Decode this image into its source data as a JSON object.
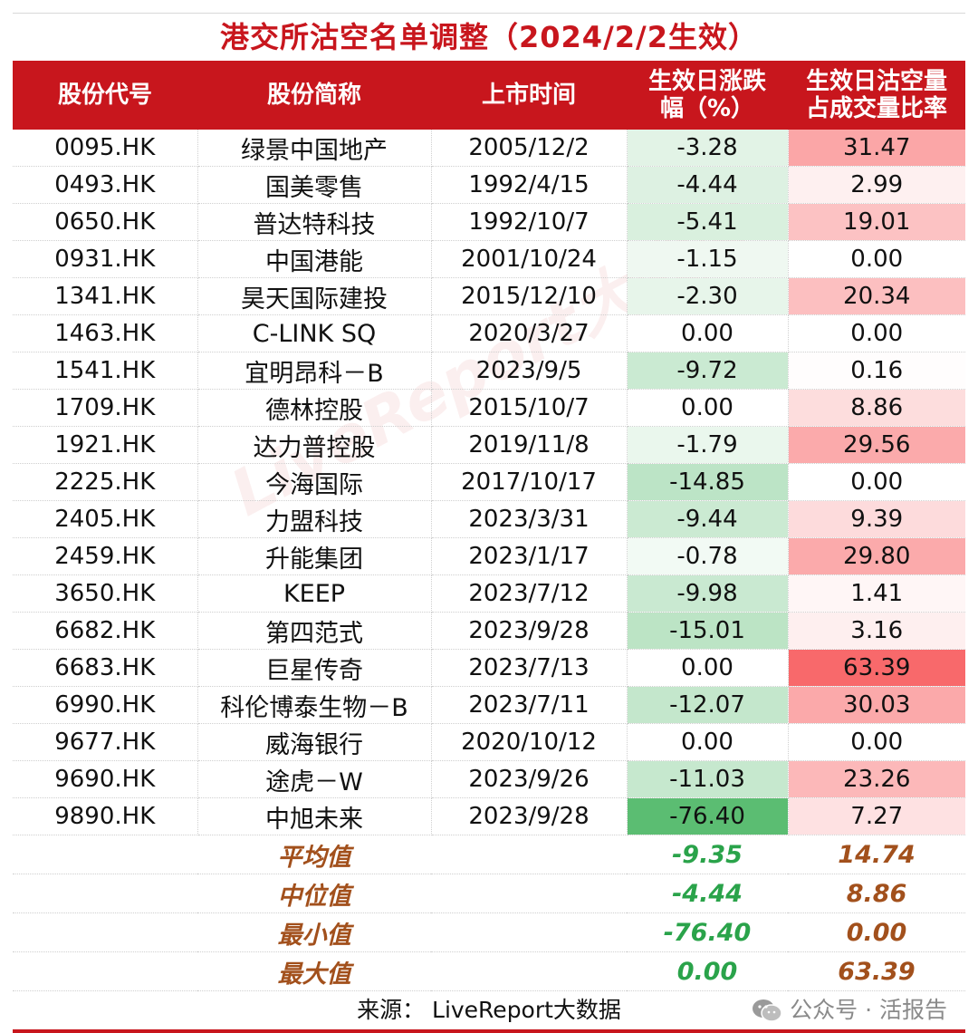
{
  "title": "港交所沽空名单调整（2024/2/2生效）",
  "headers": [
    "股份代号",
    "股份简称",
    "上市时间",
    "生效日涨跌\n幅（%）",
    "生效日沽空量\n占成交量比率"
  ],
  "rows": [
    {
      "code": "0095.HK",
      "name": "绿景中国地产",
      "date": "2005/12/2",
      "change": "-3.28",
      "short": "31.47"
    },
    {
      "code": "0493.HK",
      "name": "国美零售",
      "date": "1992/4/15",
      "change": "-4.44",
      "short": "2.99"
    },
    {
      "code": "0650.HK",
      "name": "普达特科技",
      "date": "1992/10/7",
      "change": "-5.41",
      "short": "19.01"
    },
    {
      "code": "0931.HK",
      "name": "中国港能",
      "date": "2001/10/24",
      "change": "-1.15",
      "short": "0.00"
    },
    {
      "code": "1341.HK",
      "name": "昊天国际建投",
      "date": "2015/12/10",
      "change": "-2.30",
      "short": "20.34"
    },
    {
      "code": "1463.HK",
      "name": "C-LINK SQ",
      "date": "2020/3/27",
      "change": "0.00",
      "short": "0.00"
    },
    {
      "code": "1541.HK",
      "name": "宜明昂科－B",
      "date": "2023/9/5",
      "change": "-9.72",
      "short": "0.16"
    },
    {
      "code": "1709.HK",
      "name": "德林控股",
      "date": "2015/10/7",
      "change": "0.00",
      "short": "8.86"
    },
    {
      "code": "1921.HK",
      "name": "达力普控股",
      "date": "2019/11/8",
      "change": "-1.79",
      "short": "29.56"
    },
    {
      "code": "2225.HK",
      "name": "今海国际",
      "date": "2017/10/17",
      "change": "-14.85",
      "short": "0.00"
    },
    {
      "code": "2405.HK",
      "name": "力盟科技",
      "date": "2023/3/31",
      "change": "-9.44",
      "short": "9.39"
    },
    {
      "code": "2459.HK",
      "name": "升能集团",
      "date": "2023/1/17",
      "change": "-0.78",
      "short": "29.80"
    },
    {
      "code": "3650.HK",
      "name": "KEEP",
      "date": "2023/7/12",
      "change": "-9.98",
      "short": "1.41"
    },
    {
      "code": "6682.HK",
      "name": "第四范式",
      "date": "2023/9/28",
      "change": "-15.01",
      "short": "3.16"
    },
    {
      "code": "6683.HK",
      "name": "巨星传奇",
      "date": "2023/7/13",
      "change": "0.00",
      "short": "63.39"
    },
    {
      "code": "6990.HK",
      "name": "科伦博泰生物－B",
      "date": "2023/7/11",
      "change": "-12.07",
      "short": "30.03"
    },
    {
      "code": "9677.HK",
      "name": "威海银行",
      "date": "2020/10/12",
      "change": "0.00",
      "short": "0.00"
    },
    {
      "code": "9690.HK",
      "name": "途虎－W",
      "date": "2023/9/26",
      "change": "-11.03",
      "short": "23.26"
    },
    {
      "code": "9890.HK",
      "name": "中旭未来",
      "date": "2023/9/28",
      "change": "-76.40",
      "short": "7.27"
    }
  ],
  "stats": [
    {
      "label": "平均值",
      "change": "-9.35",
      "short": "14.74"
    },
    {
      "label": "中位值",
      "change": "-4.44",
      "short": "8.86"
    },
    {
      "label": "最小值",
      "change": "-76.40",
      "short": "0.00"
    },
    {
      "label": "最大值",
      "change": "0.00",
      "short": "63.39"
    }
  ],
  "source": "来源：  LiveReport大数据",
  "wechat": "公众号 · 活报告",
  "watermark": "LiveReport大数據",
  "colors": {
    "header_bg": "#c8161d",
    "green_scale": "#5bbd72",
    "red_scale": "#f8696b",
    "stat_label": "#a2501c",
    "stat_green": "#2aa34a"
  }
}
